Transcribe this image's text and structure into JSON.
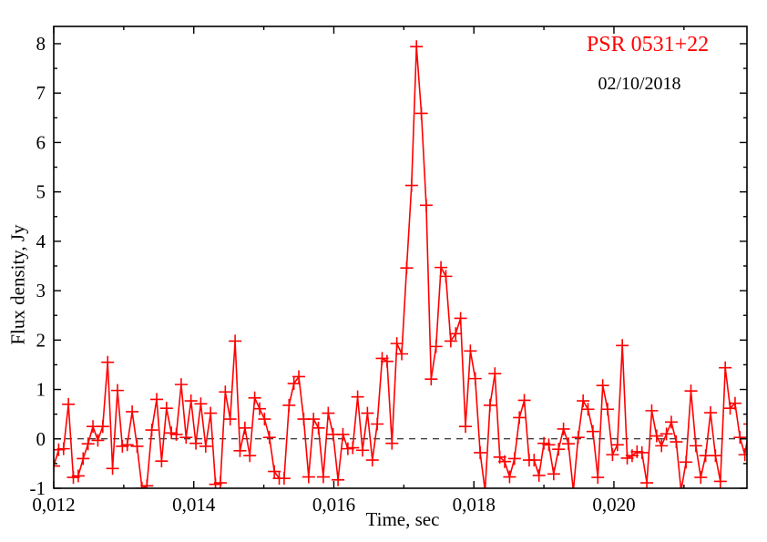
{
  "page": {
    "background": "#ffffff",
    "plot_frame_color": "#000000"
  },
  "chart_data": {
    "type": "line",
    "title": "PSR 0531+22",
    "title_color": "#ff0000",
    "subtitle": "02/10/2018",
    "xlabel": "Time, sec",
    "ylabel": "Flux density, Jy",
    "xlim": [
      0.012,
      0.0219
    ],
    "ylim": [
      -1,
      8.35
    ],
    "grid": false,
    "decimal_separator": ",",
    "x_major_ticks": [
      0.012,
      0.014,
      0.016,
      0.018,
      0.02
    ],
    "x_tick_labels": [
      "0,012",
      "0,014",
      "0,016",
      "0,018",
      "0,020"
    ],
    "x_minor_ticks": [
      0.013,
      0.015,
      0.017,
      0.019,
      0.021
    ],
    "y_major_ticks": [
      -1,
      0,
      1,
      2,
      3,
      4,
      5,
      6,
      7,
      8
    ],
    "y_tick_labels": [
      "-1",
      "0",
      "1",
      "2",
      "3",
      "4",
      "5",
      "6",
      "7",
      "8"
    ],
    "y_minor_ticks": [
      -0.5,
      0.5,
      1.5,
      2.5,
      3.5,
      4.5,
      5.5,
      6.5,
      7.5
    ],
    "zero_line": {
      "y": 0,
      "style": "dashed",
      "color": "#000000"
    },
    "peak": {
      "time_sec": 0.01718,
      "flux_jy": 7.94
    },
    "series": [
      {
        "name": "flux-density",
        "color": "#ff0000",
        "marker": "plus",
        "x_start": 0.012,
        "x_step": 7e-05,
        "values": [
          -0.55,
          -0.22,
          -0.2,
          0.7,
          -0.78,
          -0.75,
          -0.4,
          -0.1,
          0.25,
          -0.03,
          0.25,
          1.55,
          -0.6,
          0.98,
          -0.15,
          -0.12,
          0.55,
          -0.15,
          -1.0,
          -0.95,
          0.18,
          0.8,
          -0.45,
          0.62,
          0.12,
          0.09,
          1.1,
          0.03,
          0.77,
          -0.09,
          0.71,
          -0.15,
          0.52,
          -0.92,
          -0.89,
          0.95,
          0.4,
          1.98,
          -0.24,
          0.22,
          -0.34,
          0.83,
          0.61,
          0.4,
          0.03,
          -0.66,
          -0.8,
          -0.8,
          0.68,
          1.12,
          1.26,
          0.4,
          -0.77,
          0.4,
          0.22,
          -0.77,
          0.52,
          0.09,
          -0.83,
          0.09,
          -0.2,
          -0.18,
          0.85,
          -0.23,
          0.52,
          -0.43,
          0.3,
          1.63,
          1.57,
          -0.09,
          1.93,
          1.72,
          3.46,
          5.13,
          7.94,
          6.59,
          4.73,
          1.21,
          1.87,
          3.47,
          3.29,
          1.98,
          2.13,
          2.44,
          0.25,
          1.78,
          1.22,
          -0.28,
          -1.05,
          0.68,
          1.32,
          -0.37,
          -0.46,
          -0.77,
          -0.4,
          0.43,
          0.78,
          -0.43,
          -0.43,
          -0.74,
          -0.09,
          -0.12,
          -0.71,
          -0.21,
          0.2,
          -0.1,
          -1.05,
          0.03,
          0.77,
          0.6,
          0.15,
          -0.78,
          1.08,
          0.6,
          -0.32,
          -0.12,
          1.89,
          -0.39,
          -0.34,
          -0.26,
          -0.28,
          -0.89,
          0.57,
          0.06,
          -0.14,
          0.1,
          0.34,
          -0.06,
          -1.05,
          -0.47,
          0.97,
          -0.14,
          -0.78,
          -0.34,
          0.53,
          -0.34,
          -0.86,
          1.44,
          0.62,
          0.72,
          0.03,
          -0.32,
          0.3
        ]
      }
    ]
  }
}
